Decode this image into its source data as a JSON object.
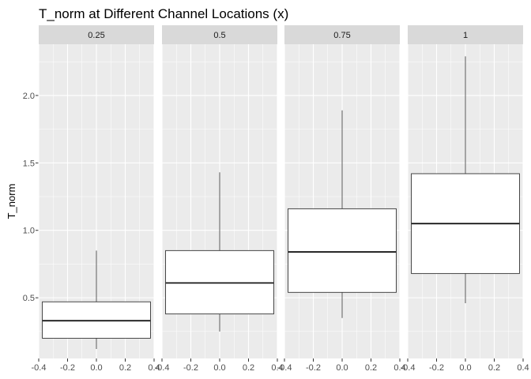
{
  "chart_data": {
    "type": "boxplot",
    "title": "T_norm at Different Channel Locations (x)",
    "xlabel": "",
    "ylabel": "T_norm",
    "facet_variable": "x",
    "x_ticks": [
      -0.4,
      -0.2,
      0.0,
      0.2,
      0.4
    ],
    "x_tick_labels": [
      "-0.4",
      "-0.2",
      "0.0",
      "0.2",
      "0.4"
    ],
    "xlim": [
      -0.4,
      0.4
    ],
    "y_ticks": [
      0.5,
      1.0,
      1.5,
      2.0
    ],
    "y_tick_labels": [
      "0.5",
      "1.0",
      "1.5",
      "2.0"
    ],
    "ylim": [
      0.05,
      2.38
    ],
    "grid": true,
    "legend": "none",
    "facets": [
      {
        "label": "0.25",
        "box": {
          "x_left": -0.375,
          "x_right": 0.375,
          "whisker_low": 0.12,
          "q1": 0.2,
          "median": 0.33,
          "q3": 0.47,
          "whisker_high": 0.85
        }
      },
      {
        "label": "0.5",
        "box": {
          "x_left": -0.375,
          "x_right": 0.375,
          "whisker_low": 0.25,
          "q1": 0.38,
          "median": 0.61,
          "q3": 0.85,
          "whisker_high": 1.43
        }
      },
      {
        "label": "0.75",
        "box": {
          "x_left": -0.375,
          "x_right": 0.375,
          "whisker_low": 0.35,
          "q1": 0.54,
          "median": 0.84,
          "q3": 1.16,
          "whisker_high": 1.89
        }
      },
      {
        "label": "1",
        "box": {
          "x_left": -0.375,
          "x_right": 0.375,
          "whisker_low": 0.46,
          "q1": 0.68,
          "median": 1.05,
          "q3": 1.42,
          "whisker_high": 2.29
        }
      }
    ],
    "colors": {
      "panel_background": "#ebebeb",
      "strip_background": "#d9d9d9",
      "grid_major": "#ffffff",
      "box_fill": "#ffffff",
      "box_stroke": "#333333"
    }
  }
}
